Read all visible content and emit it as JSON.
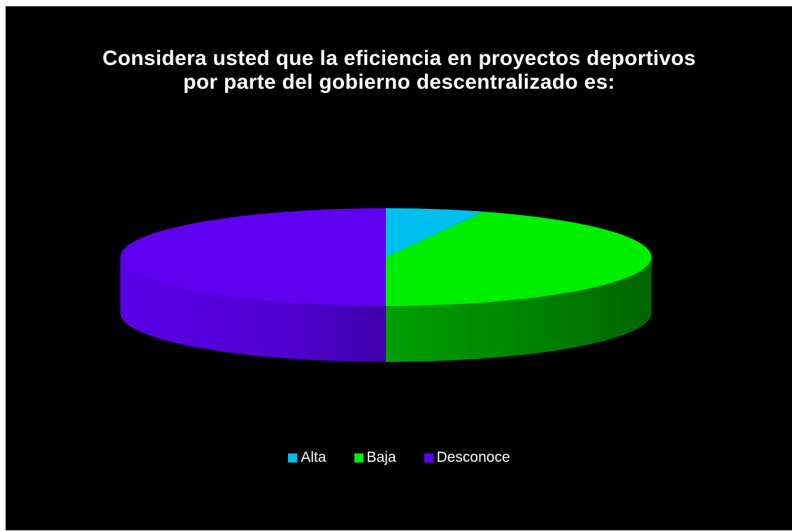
{
  "chart_data": {
    "type": "pie",
    "title_lines": [
      "Considera usted que la eficiencia en proyectos deportivos",
      "por parte del gobierno descentralizado es:"
    ],
    "categories": [
      "Alta",
      "Baja",
      "Desconoce"
    ],
    "values": [
      6,
      44,
      50
    ],
    "colors": [
      "#00bfef",
      "#00ee00",
      "#6000f0"
    ],
    "side_colors": [
      "#0090b8",
      "#00a800",
      "#4f00cc"
    ],
    "legend_position": "bottom",
    "style": "3d-pie"
  }
}
